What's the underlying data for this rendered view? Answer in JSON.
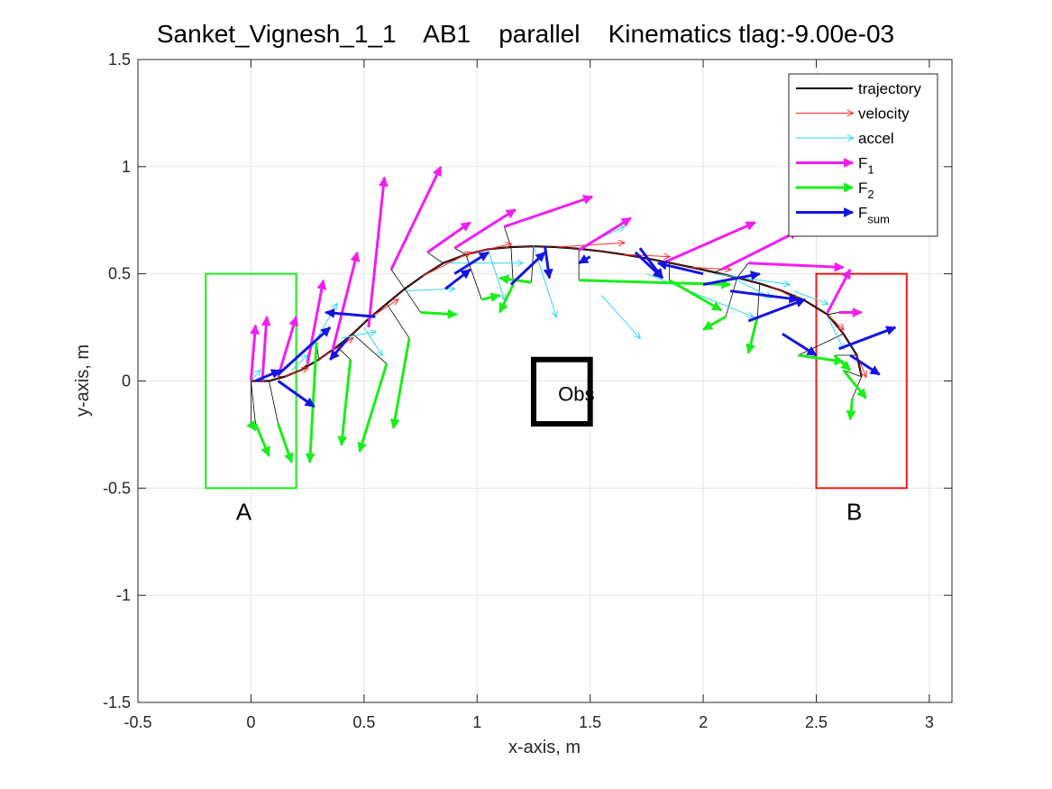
{
  "chart_data": {
    "type": "line",
    "title": "Sanket_Vignesh_1_1    AB1    parallel    Kinematics tlag:-9.00e-03",
    "xlabel": "x-axis, m",
    "ylabel": "y-axis, m",
    "xlim": [
      -0.5,
      3.1
    ],
    "ylim": [
      -1.5,
      1.5
    ],
    "xticks": [
      -0.5,
      0,
      0.5,
      1,
      1.5,
      2,
      2.5,
      3
    ],
    "yticks": [
      -1.5,
      -1,
      -0.5,
      0,
      0.5,
      1,
      1.5
    ],
    "xtick_labels": [
      "-0.5",
      "0",
      "0.5",
      "1",
      "1.5",
      "2",
      "2.5",
      "3"
    ],
    "ytick_labels": [
      "-1.5",
      "-1",
      "-0.5",
      "0",
      "0.5",
      "1",
      "1.5"
    ],
    "grid": true,
    "legend_position": "top-right",
    "legend": [
      {
        "key": "trajectory",
        "label": "trajectory",
        "sub": "",
        "color": "#000000",
        "style": "line"
      },
      {
        "key": "velocity",
        "label": "velocity",
        "sub": "",
        "color": "#ff2a2a",
        "style": "thin-arrow"
      },
      {
        "key": "accel",
        "label": "accel",
        "sub": "",
        "color": "#2fd8ee",
        "style": "thin-arrow"
      },
      {
        "key": "F1",
        "label": "F",
        "sub": "1",
        "color": "#f21df2",
        "style": "thick-arrow"
      },
      {
        "key": "F2",
        "label": "F",
        "sub": "2",
        "color": "#19ee19",
        "style": "thick-arrow"
      },
      {
        "key": "Fsum",
        "label": "F",
        "sub": "sum",
        "color": "#1414e0",
        "style": "thick-arrow"
      }
    ],
    "regions": [
      {
        "label": "A",
        "x": [
          -0.2,
          0.2
        ],
        "y": [
          -0.5,
          0.5
        ],
        "color": "#19ee19"
      },
      {
        "label": "B",
        "x": [
          2.5,
          2.9
        ],
        "y": [
          -0.5,
          0.5
        ],
        "color": "#ee1919"
      }
    ],
    "obstacle": {
      "label": "Obs",
      "x": [
        1.25,
        1.5
      ],
      "y": [
        -0.2,
        0.1
      ],
      "color": "#000000"
    },
    "trajectory": {
      "x": [
        0.0,
        0.08,
        0.15,
        0.22,
        0.3,
        0.38,
        0.45,
        0.52,
        0.6,
        0.68,
        0.76,
        0.85,
        0.95,
        1.05,
        1.15,
        1.25,
        1.35,
        1.45,
        1.55,
        1.65,
        1.75,
        1.85,
        1.95,
        2.05,
        2.15,
        2.25,
        2.35,
        2.45,
        2.55,
        2.62,
        2.68,
        2.7
      ],
      "y": [
        0.0,
        0.0,
        0.02,
        0.05,
        0.1,
        0.16,
        0.22,
        0.29,
        0.36,
        0.43,
        0.49,
        0.55,
        0.59,
        0.615,
        0.625,
        0.628,
        0.625,
        0.617,
        0.605,
        0.59,
        0.572,
        0.552,
        0.53,
        0.507,
        0.482,
        0.455,
        0.42,
        0.375,
        0.31,
        0.22,
        0.12,
        0.02
      ]
    },
    "arrows": {
      "F1": [
        [
          0.0,
          0.0,
          0.02,
          0.26
        ],
        [
          0.05,
          0.0,
          0.07,
          0.3
        ],
        [
          0.12,
          0.02,
          0.2,
          0.3
        ],
        [
          0.25,
          0.08,
          0.32,
          0.47
        ],
        [
          0.36,
          0.14,
          0.47,
          0.6
        ],
        [
          0.52,
          0.25,
          0.59,
          0.95
        ],
        [
          0.62,
          0.52,
          0.84,
          1.0
        ],
        [
          0.78,
          0.6,
          0.97,
          0.74
        ],
        [
          0.9,
          0.62,
          1.17,
          0.8
        ],
        [
          1.12,
          0.72,
          1.51,
          0.86
        ],
        [
          1.45,
          0.61,
          1.68,
          0.76
        ],
        [
          1.82,
          0.55,
          2.23,
          0.74
        ],
        [
          2.08,
          0.52,
          2.42,
          0.7
        ],
        [
          2.2,
          0.55,
          2.62,
          0.53
        ],
        [
          2.55,
          0.32,
          2.65,
          0.52
        ],
        [
          2.6,
          0.32,
          2.7,
          0.32
        ]
      ],
      "F2": [
        [
          0.0,
          -0.2,
          0.02,
          -0.23
        ],
        [
          0.02,
          -0.2,
          0.08,
          -0.35
        ],
        [
          0.12,
          -0.2,
          0.18,
          -0.38
        ],
        [
          0.29,
          0.18,
          0.26,
          -0.38
        ],
        [
          0.44,
          0.1,
          0.4,
          -0.3
        ],
        [
          0.6,
          0.08,
          0.48,
          -0.33
        ],
        [
          0.7,
          0.2,
          0.63,
          -0.22
        ],
        [
          0.75,
          0.32,
          0.91,
          0.31
        ],
        [
          1.02,
          0.38,
          1.1,
          0.4
        ],
        [
          1.16,
          0.45,
          1.1,
          0.32
        ],
        [
          1.24,
          0.46,
          1.1,
          0.48
        ],
        [
          1.45,
          0.47,
          2.12,
          0.45
        ],
        [
          1.85,
          0.47,
          2.08,
          0.33
        ],
        [
          2.1,
          0.3,
          2.0,
          0.24
        ],
        [
          2.24,
          0.3,
          2.2,
          0.13
        ],
        [
          2.42,
          0.12,
          2.62,
          0.09
        ],
        [
          2.58,
          0.12,
          2.65,
          0.05
        ],
        [
          2.62,
          0.05,
          2.72,
          -0.08
        ],
        [
          2.66,
          -0.08,
          2.65,
          -0.18
        ]
      ],
      "Fsum": [
        [
          0.02,
          0.0,
          0.13,
          0.05
        ],
        [
          0.12,
          0.0,
          0.28,
          -0.12
        ],
        [
          0.12,
          0.03,
          0.35,
          0.25
        ],
        [
          0.55,
          0.3,
          0.33,
          0.32
        ],
        [
          0.43,
          0.2,
          0.35,
          0.1
        ],
        [
          0.86,
          0.43,
          0.97,
          0.52
        ],
        [
          0.9,
          0.5,
          1.05,
          0.6
        ],
        [
          1.15,
          0.45,
          1.3,
          0.6
        ],
        [
          1.3,
          0.63,
          1.32,
          0.48
        ],
        [
          1.5,
          0.58,
          1.45,
          0.55
        ],
        [
          1.7,
          0.6,
          1.82,
          0.48
        ],
        [
          1.72,
          0.62,
          1.82,
          0.48
        ],
        [
          2.0,
          0.5,
          1.8,
          0.55
        ],
        [
          2.0,
          0.45,
          2.25,
          0.5
        ],
        [
          2.12,
          0.42,
          2.42,
          0.38
        ],
        [
          2.2,
          0.28,
          2.45,
          0.38
        ],
        [
          2.35,
          0.22,
          2.5,
          0.12
        ],
        [
          2.6,
          0.15,
          2.85,
          0.25
        ],
        [
          2.65,
          0.12,
          2.78,
          0.03
        ]
      ],
      "velocity": [
        [
          0.15,
          0.02,
          0.25,
          0.06
        ],
        [
          0.3,
          0.1,
          0.45,
          0.2
        ],
        [
          0.52,
          0.29,
          0.65,
          0.38
        ],
        [
          0.76,
          0.49,
          0.97,
          0.6
        ],
        [
          0.95,
          0.59,
          1.15,
          0.64
        ],
        [
          1.35,
          0.625,
          1.65,
          0.645
        ],
        [
          1.65,
          0.59,
          1.85,
          0.58
        ],
        [
          1.95,
          0.53,
          2.12,
          0.52
        ],
        [
          2.3,
          0.44,
          2.42,
          0.38
        ],
        [
          2.55,
          0.31,
          2.62,
          0.24
        ],
        [
          2.68,
          0.12,
          2.72,
          0.02
        ]
      ],
      "accel": [
        [
          0.0,
          0.0,
          0.04,
          0.05
        ],
        [
          0.18,
          0.05,
          0.25,
          0.12
        ],
        [
          0.25,
          0.12,
          0.38,
          0.36
        ],
        [
          0.4,
          0.2,
          0.55,
          0.23
        ],
        [
          0.5,
          0.25,
          0.58,
          0.12
        ],
        [
          0.68,
          0.42,
          0.9,
          0.43
        ],
        [
          0.88,
          0.55,
          1.2,
          0.55
        ],
        [
          1.05,
          0.61,
          1.12,
          0.38
        ],
        [
          1.25,
          0.63,
          1.35,
          0.3
        ],
        [
          1.45,
          0.62,
          1.65,
          0.72
        ],
        [
          1.55,
          0.4,
          1.72,
          0.2
        ],
        [
          1.75,
          0.5,
          2.22,
          0.3
        ],
        [
          2.05,
          0.5,
          2.38,
          0.45
        ],
        [
          2.15,
          0.47,
          2.3,
          0.39
        ],
        [
          2.4,
          0.42,
          2.55,
          0.36
        ],
        [
          2.55,
          0.3,
          2.62,
          0.15
        ]
      ]
    }
  }
}
